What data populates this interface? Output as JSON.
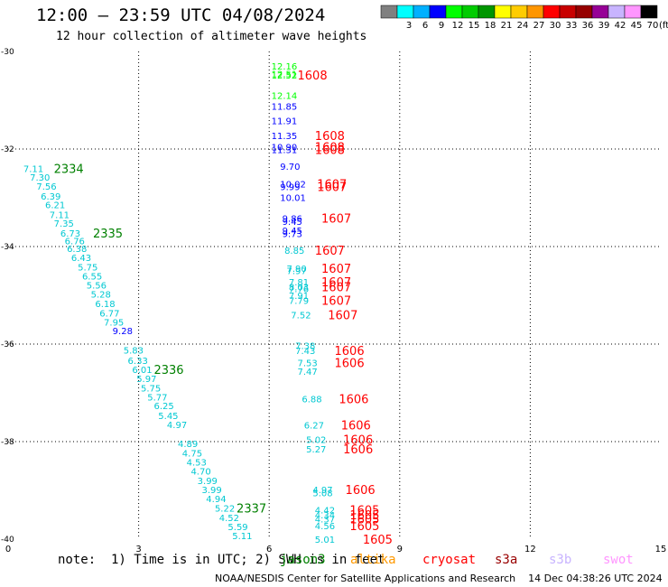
{
  "title": "12:00 – 23:59 UTC 04/08/2024",
  "subtitle": "12 hour collection of altimeter wave heights",
  "colorbar": {
    "unit": "(ft)",
    "colors": [
      "#808080",
      "#00ffff",
      "#00b0ff",
      "#0000ff",
      "#00ff00",
      "#00cc00",
      "#009600",
      "#ffff00",
      "#ffcc00",
      "#ff9600",
      "#ff0000",
      "#c80000",
      "#960000",
      "#960096",
      "#c8b4ff",
      "#ff96ff",
      "#000000"
    ],
    "labels": [
      "",
      "3",
      "6",
      "9",
      "12",
      "15",
      "18",
      "21",
      "24",
      "27",
      "30",
      "33",
      "36",
      "39",
      "42",
      "45",
      "70"
    ]
  },
  "note": "note:  1) Time is in UTC; 2) SWH is in feet",
  "satellites": [
    {
      "name": "jason3",
      "color": "#008000"
    },
    {
      "name": "altika",
      "color": "#ff9900"
    },
    {
      "name": "cryosat",
      "color": "#ff0000"
    },
    {
      "name": "s3a",
      "color": "#990000"
    },
    {
      "name": "s3b",
      "color": "#c8b4ff"
    },
    {
      "name": "swot",
      "color": "#ff96ff"
    }
  ],
  "credit": "NOAA/NESDIS Center for Satellite Applications and Research    14 Dec 04:38:26 UTC 2024",
  "chart_data": {
    "type": "scatter",
    "x_range": [
      0,
      15
    ],
    "y_range": [
      -40,
      -30
    ],
    "x_ticks": [
      "0",
      "3",
      "6",
      "9",
      "12",
      "15"
    ],
    "y_ticks": [
      "-30",
      "-32",
      "-34",
      "-36",
      "-38",
      "-40"
    ],
    "grid": true,
    "tracks": [
      {
        "points": [
          {
            "x": 0.35,
            "y": -32.4,
            "v": "7.11"
          },
          {
            "x": 0.5,
            "y": -32.57,
            "v": "7.30"
          },
          {
            "x": 0.65,
            "y": -32.76,
            "v": "7.56"
          },
          {
            "x": 0.75,
            "y": -32.96,
            "v": "6.39"
          },
          {
            "x": 0.85,
            "y": -33.14,
            "v": "6.21"
          },
          {
            "x": 0.95,
            "y": -33.34,
            "v": "7.11"
          },
          {
            "x": 1.05,
            "y": -33.52,
            "v": "7.35"
          },
          {
            "x": 1.2,
            "y": -33.72,
            "v": "6.73"
          },
          {
            "x": 1.3,
            "y": -33.88,
            "v": "6.76"
          },
          {
            "x": 1.35,
            "y": -34.04,
            "v": "6.38"
          },
          {
            "x": 1.45,
            "y": -34.22,
            "v": "6.43"
          },
          {
            "x": 1.6,
            "y": -34.42,
            "v": "5.75"
          },
          {
            "x": 1.7,
            "y": -34.6,
            "v": "6.55"
          },
          {
            "x": 1.8,
            "y": -34.79,
            "v": "5.56"
          },
          {
            "x": 1.9,
            "y": -34.97,
            "v": "5.28"
          },
          {
            "x": 2.0,
            "y": -35.17,
            "v": "6.18"
          },
          {
            "x": 2.1,
            "y": -35.36,
            "v": "6.77"
          },
          {
            "x": 2.2,
            "y": -35.55,
            "v": "7.95"
          },
          {
            "x": 2.65,
            "y": -36.12,
            "v": "5.83"
          },
          {
            "x": 2.75,
            "y": -36.33,
            "v": "6.33"
          },
          {
            "x": 2.85,
            "y": -36.52,
            "v": "6.01"
          },
          {
            "x": 2.95,
            "y": -36.7,
            "v": "5.97"
          },
          {
            "x": 3.05,
            "y": -36.9,
            "v": "5.75"
          },
          {
            "x": 3.2,
            "y": -37.08,
            "v": "5.77"
          },
          {
            "x": 3.35,
            "y": -37.26,
            "v": "6.25"
          },
          {
            "x": 3.45,
            "y": -37.46,
            "v": "5.45"
          },
          {
            "x": 3.65,
            "y": -37.65,
            "v": "4.97"
          },
          {
            "x": 3.9,
            "y": -38.04,
            "v": "4.89"
          },
          {
            "x": 4.0,
            "y": -38.23,
            "v": "4.75"
          },
          {
            "x": 4.1,
            "y": -38.42,
            "v": "4.53"
          },
          {
            "x": 4.2,
            "y": -38.6,
            "v": "4.70"
          },
          {
            "x": 4.35,
            "y": -38.8,
            "v": "3.99"
          },
          {
            "x": 4.45,
            "y": -38.98,
            "v": "3.99"
          },
          {
            "x": 4.55,
            "y": -39.17,
            "v": "4.94"
          },
          {
            "x": 4.75,
            "y": -39.36,
            "v": "5.22"
          },
          {
            "x": 4.85,
            "y": -39.56,
            "v": "4.52"
          },
          {
            "x": 5.05,
            "y": -39.74,
            "v": "5.59"
          },
          {
            "x": 5.15,
            "y": -39.93,
            "v": "5.11"
          },
          {
            "x": 2.4,
            "y": -35.72,
            "v": "9.28"
          }
        ],
        "time_labels": [
          {
            "x": 1.05,
            "y": -32.4,
            "t": "2334"
          },
          {
            "x": 1.95,
            "y": -33.72,
            "t": "2335"
          },
          {
            "x": 3.35,
            "y": -36.52,
            "t": "2336"
          },
          {
            "x": 5.25,
            "y": -39.36,
            "t": "2337"
          }
        ]
      },
      {
        "points": [
          {
            "x": 6.05,
            "y": -30.3,
            "v": "12.16"
          },
          {
            "x": 6.05,
            "y": -30.45,
            "v": "12.51"
          },
          {
            "x": 6.05,
            "y": -30.48,
            "v": "12.52"
          },
          {
            "x": 6.05,
            "y": -30.9,
            "v": "12.14"
          },
          {
            "x": 6.05,
            "y": -31.12,
            "v": "11.85"
          },
          {
            "x": 6.05,
            "y": -31.42,
            "v": "11.91"
          },
          {
            "x": 6.05,
            "y": -31.72,
            "v": "11.35"
          },
          {
            "x": 6.05,
            "y": -31.95,
            "v": "10.90"
          },
          {
            "x": 6.05,
            "y": -32.01,
            "v": "11.31"
          },
          {
            "x": 6.25,
            "y": -32.35,
            "v": "9.70"
          },
          {
            "x": 6.25,
            "y": -32.71,
            "v": "10.02"
          },
          {
            "x": 6.25,
            "y": -32.77,
            "v": "9.99"
          },
          {
            "x": 6.25,
            "y": -32.99,
            "v": "10.01"
          },
          {
            "x": 6.3,
            "y": -33.42,
            "v": "9.86"
          },
          {
            "x": 6.3,
            "y": -33.48,
            "v": "9.45"
          },
          {
            "x": 6.3,
            "y": -33.67,
            "v": "9.45"
          },
          {
            "x": 6.3,
            "y": -33.73,
            "v": "9.73"
          },
          {
            "x": 6.35,
            "y": -34.07,
            "v": "8.85"
          },
          {
            "x": 6.4,
            "y": -34.44,
            "v": "7.90"
          },
          {
            "x": 6.4,
            "y": -34.49,
            "v": "7.97"
          },
          {
            "x": 6.45,
            "y": -34.72,
            "v": "7.81"
          },
          {
            "x": 6.45,
            "y": -34.82,
            "v": "8.03"
          },
          {
            "x": 6.45,
            "y": -34.86,
            "v": "7.76"
          },
          {
            "x": 6.45,
            "y": -35.0,
            "v": "7.91"
          },
          {
            "x": 6.45,
            "y": -35.1,
            "v": "7.79"
          },
          {
            "x": 6.5,
            "y": -35.4,
            "v": "7.52"
          },
          {
            "x": 6.6,
            "y": -36.03,
            "v": "7.38"
          },
          {
            "x": 6.6,
            "y": -36.13,
            "v": "7.43"
          },
          {
            "x": 6.65,
            "y": -36.38,
            "v": "7.53"
          },
          {
            "x": 6.65,
            "y": -36.56,
            "v": "7.47"
          },
          {
            "x": 6.75,
            "y": -37.12,
            "v": "6.88"
          },
          {
            "x": 6.8,
            "y": -37.66,
            "v": "6.27"
          },
          {
            "x": 6.85,
            "y": -37.95,
            "v": "5.02"
          },
          {
            "x": 6.85,
            "y": -38.15,
            "v": "5.27"
          },
          {
            "x": 7.0,
            "y": -38.98,
            "v": "4.97"
          },
          {
            "x": 7.0,
            "y": -39.05,
            "v": "5.08"
          },
          {
            "x": 7.05,
            "y": -39.4,
            "v": "4.42"
          },
          {
            "x": 7.05,
            "y": -39.5,
            "v": "4.34"
          },
          {
            "x": 7.05,
            "y": -39.58,
            "v": "4.37"
          },
          {
            "x": 7.05,
            "y": -39.72,
            "v": "4.56"
          },
          {
            "x": 7.05,
            "y": -40.0,
            "v": "5.01"
          }
        ],
        "time_labels": [
          {
            "x": 6.65,
            "y": -30.48,
            "t": "1608"
          },
          {
            "x": 7.05,
            "y": -31.72,
            "t": "1608"
          },
          {
            "x": 7.05,
            "y": -31.95,
            "t": "1608"
          },
          {
            "x": 7.05,
            "y": -32.01,
            "t": "1608"
          },
          {
            "x": 7.1,
            "y": -32.71,
            "t": "1607"
          },
          {
            "x": 7.1,
            "y": -32.77,
            "t": "1607"
          },
          {
            "x": 7.2,
            "y": -33.42,
            "t": "1607"
          },
          {
            "x": 7.05,
            "y": -34.07,
            "t": "1607"
          },
          {
            "x": 7.2,
            "y": -34.44,
            "t": "1607"
          },
          {
            "x": 7.2,
            "y": -34.72,
            "t": "1607"
          },
          {
            "x": 7.2,
            "y": -34.82,
            "t": "1607"
          },
          {
            "x": 7.2,
            "y": -35.1,
            "t": "1607"
          },
          {
            "x": 7.35,
            "y": -35.4,
            "t": "1607"
          },
          {
            "x": 7.5,
            "y": -36.13,
            "t": "1606"
          },
          {
            "x": 7.5,
            "y": -36.38,
            "t": "1606"
          },
          {
            "x": 7.6,
            "y": -37.12,
            "t": "1606"
          },
          {
            "x": 7.65,
            "y": -37.66,
            "t": "1606"
          },
          {
            "x": 7.7,
            "y": -37.95,
            "t": "1606"
          },
          {
            "x": 7.7,
            "y": -38.15,
            "t": "1606"
          },
          {
            "x": 7.75,
            "y": -38.98,
            "t": "1606"
          },
          {
            "x": 7.85,
            "y": -39.4,
            "t": "1605"
          },
          {
            "x": 7.85,
            "y": -39.5,
            "t": "1605"
          },
          {
            "x": 7.85,
            "y": -39.58,
            "t": "1605"
          },
          {
            "x": 7.85,
            "y": -39.72,
            "t": "1605"
          },
          {
            "x": 8.15,
            "y": -40.0,
            "t": "1605"
          }
        ]
      }
    ]
  }
}
